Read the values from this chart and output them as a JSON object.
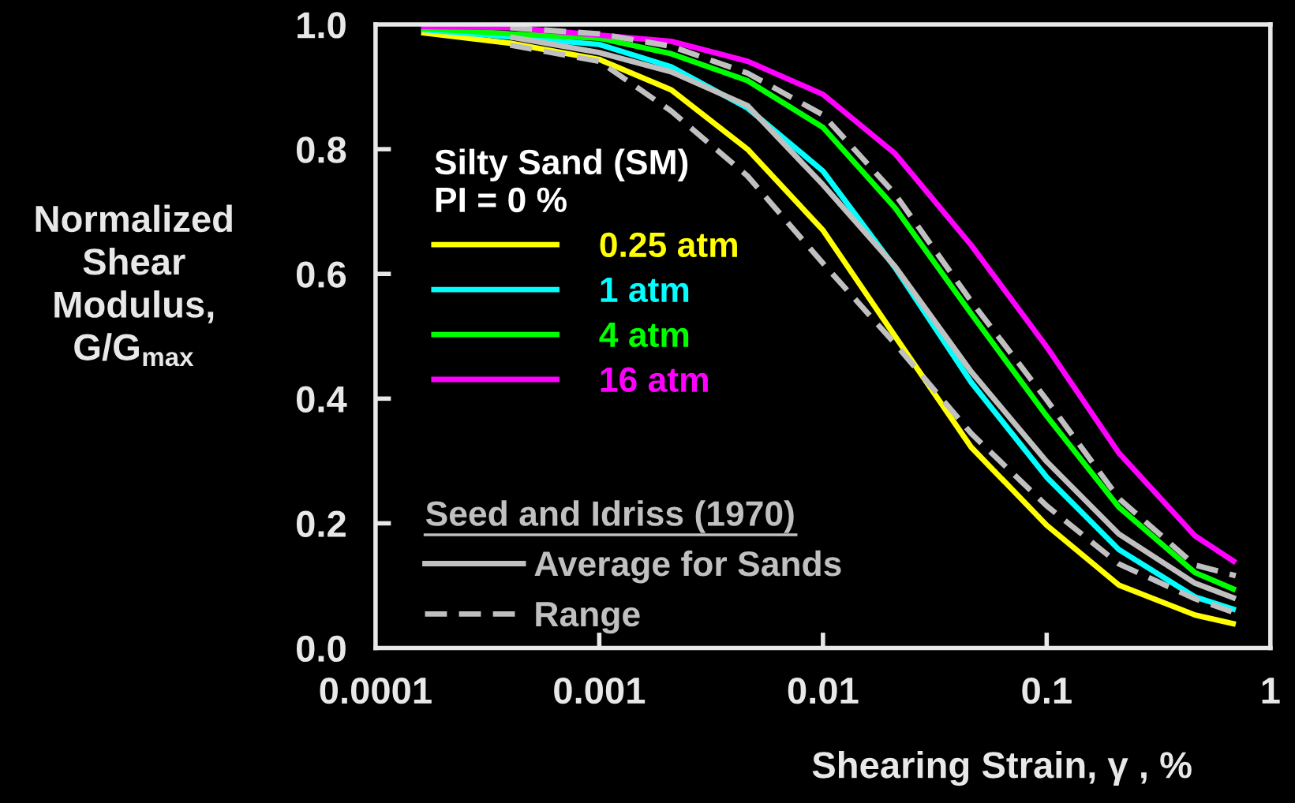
{
  "chart_data": {
    "type": "line",
    "xlabel": "Shearing Strain, γ , %",
    "ylabel": "Normalized\nShear\nModulus,\nG/G$_{max}$",
    "legend_title": "Silty Sand (SM)\nPI = 0 %",
    "annotations": [
      "Seed and Idriss (1970)"
    ],
    "log": "x",
    "xlim": [
      0.0001,
      1
    ],
    "ylim": [
      0,
      1
    ],
    "xticks": [
      {
        "value": 0.0001,
        "label": "0.0001"
      },
      {
        "value": 0.001,
        "label": "0.001"
      },
      {
        "value": 0.01,
        "label": "0.01"
      },
      {
        "value": 0.1,
        "label": "0.1"
      },
      1
    ],
    "yticks": [
      {
        "value": 0,
        "label": "0.0"
      },
      {
        "value": 0.2,
        "label": "0.2"
      },
      {
        "value": 0.4,
        "label": "0.4"
      },
      {
        "value": 0.6,
        "label": "0.6"
      },
      {
        "value": 0.8,
        "label": "0.8"
      },
      {
        "value": 1,
        "label": "1.0"
      }
    ],
    "grid": false,
    "legend": "left",
    "marker": "none",
    "series": [
      {
        "name": "0.25 atm",
        "color": "#ffff00",
        "line_style": "solid",
        "x": [
          0.00016,
          0.0004,
          0.001,
          0.0021,
          0.0046,
          0.01,
          0.021,
          0.046,
          0.1,
          0.21,
          0.46,
          0.7
        ],
        "values": [
          0.987,
          0.97,
          0.944,
          0.895,
          0.8,
          0.67,
          0.5,
          0.322,
          0.197,
          0.101,
          0.053,
          0.038
        ]
      },
      {
        "name": "1 atm",
        "color": "#00ffff",
        "line_style": "solid",
        "x": [
          0.00016,
          0.0004,
          0.001,
          0.0021,
          0.0046,
          0.01,
          0.021,
          0.046,
          0.1,
          0.21,
          0.46,
          0.7
        ],
        "values": [
          0.992,
          0.98,
          0.968,
          0.932,
          0.866,
          0.765,
          0.61,
          0.426,
          0.274,
          0.158,
          0.082,
          0.061
        ]
      },
      {
        "name": "4 atm",
        "color": "#00ff00",
        "line_style": "solid",
        "x": [
          0.00016,
          0.0004,
          0.001,
          0.0021,
          0.0046,
          0.01,
          0.021,
          0.046,
          0.1,
          0.21,
          0.46,
          0.7
        ],
        "values": [
          0.994,
          0.985,
          0.978,
          0.953,
          0.91,
          0.835,
          0.706,
          0.536,
          0.372,
          0.226,
          0.121,
          0.093
        ]
      },
      {
        "name": "16 atm",
        "color": "#ff00ff",
        "line_style": "solid",
        "x": [
          0.00016,
          0.0004,
          0.001,
          0.0021,
          0.0046,
          0.01,
          0.021,
          0.046,
          0.1,
          0.21,
          0.46,
          0.7
        ],
        "values": [
          0.997,
          0.995,
          0.983,
          0.973,
          0.941,
          0.888,
          0.793,
          0.646,
          0.483,
          0.313,
          0.18,
          0.137
        ]
      },
      {
        "name": "Average for Sands",
        "color": "#c0c0c0",
        "line_style": "solid",
        "x": [
          0.0004,
          0.001,
          0.0021,
          0.0046,
          0.01,
          0.021,
          0.046,
          0.1,
          0.21,
          0.46,
          0.7
        ],
        "values": [
          0.98,
          0.955,
          0.924,
          0.87,
          0.743,
          0.612,
          0.443,
          0.299,
          0.183,
          0.104,
          0.079
        ]
      },
      {
        "name": "Range",
        "color": "#c0c0c0",
        "line_style": "dashed",
        "x": [
          0.0004,
          0.001,
          0.0021,
          0.0046,
          0.01,
          0.021,
          0.046,
          0.1,
          0.21,
          0.46,
          0.7
        ],
        "values": [
          0.967,
          0.941,
          0.861,
          0.757,
          0.617,
          0.488,
          0.344,
          0.228,
          0.135,
          0.079,
          0.056
        ]
      },
      {
        "color": "#c0c0c0",
        "line_style": "dashed",
        "x": [
          0.0004,
          0.001,
          0.0021,
          0.0046,
          0.01,
          0.021,
          0.046,
          0.1,
          0.21,
          0.46,
          0.7
        ],
        "values": [
          0.995,
          0.985,
          0.965,
          0.922,
          0.855,
          0.728,
          0.556,
          0.398,
          0.24,
          0.133,
          0.116
        ]
      }
    ]
  }
}
